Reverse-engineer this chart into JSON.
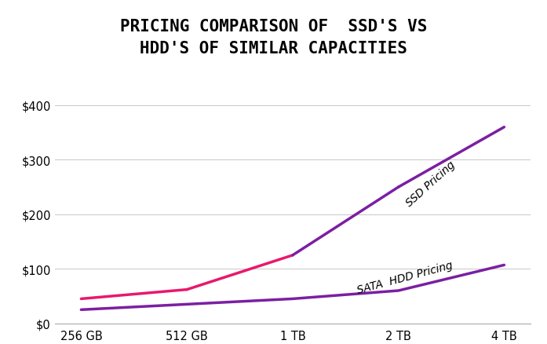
{
  "title_line1": "PRICING COMPARISON OF  SSD'S VS",
  "title_line2": "HDD'S OF SIMILAR CAPACITIES",
  "categories": [
    "256 GB",
    "512 GB",
    "1 TB",
    "2 TB",
    "4 TB"
  ],
  "ssd_values": [
    45,
    62,
    125,
    250,
    360
  ],
  "hdd_values": [
    25,
    35,
    45,
    60,
    107
  ],
  "ssd_colors": [
    "#e8186d",
    "#e8186d",
    "#e8186d",
    "#7b1fa2",
    "#7b1fa2"
  ],
  "hdd_color": "#7b1fa2",
  "ylim": [
    0,
    430
  ],
  "yticks": [
    0,
    100,
    200,
    300,
    400
  ],
  "ytick_labels": [
    "$0",
    "$100",
    "$200",
    "$300",
    "$400"
  ],
  "title_box_color": "#00e5ff",
  "title_fontsize": 15,
  "bg_color": "#ffffff",
  "ssd_label": "SSD Pricing",
  "hdd_label": "SATA  HDD Pricing",
  "linewidth": 2.5
}
